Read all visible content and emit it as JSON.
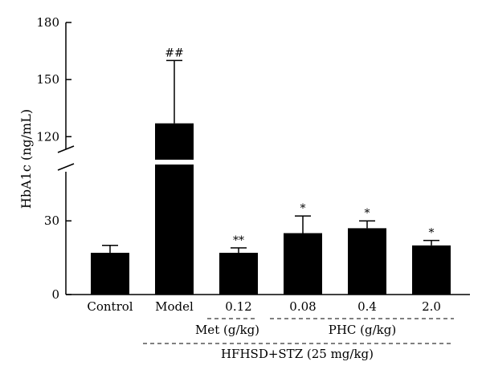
{
  "chart_data": {
    "type": "bar",
    "ylabel": "HbA1c (ng/mL)",
    "categories": [
      "Control",
      "Model",
      "0.12",
      "0.08",
      "0.4",
      "2.0"
    ],
    "values": [
      17,
      127,
      17,
      25,
      27,
      20
    ],
    "errors": [
      3,
      33,
      2,
      7,
      3,
      2
    ],
    "significance": [
      "",
      "##",
      "**",
      "*",
      "*",
      "*"
    ],
    "y_axis_lower": {
      "range": [
        0,
        50
      ],
      "ticks": [
        0,
        30
      ]
    },
    "y_axis_upper": {
      "range": [
        110,
        180
      ],
      "ticks": [
        120,
        150,
        180
      ]
    },
    "axis_break": true,
    "groups": {
      "met": "Met (g/kg)",
      "phc": "PHC (g/kg)",
      "all": "HFHSD+STZ (25 mg/kg)"
    },
    "bar_color": "#000000"
  }
}
